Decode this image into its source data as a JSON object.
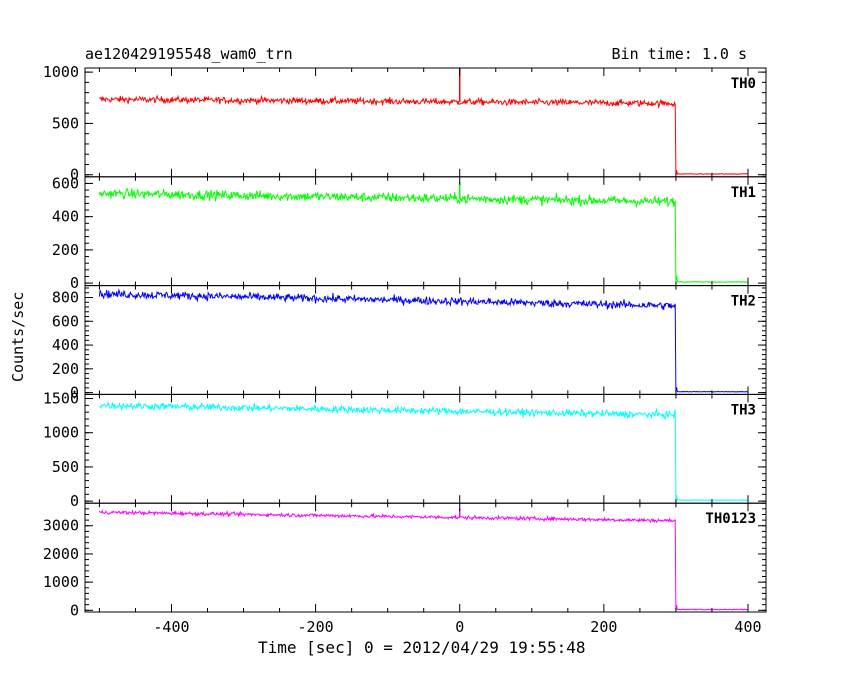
{
  "header": {
    "title": "ae120429195548_wam0_trn",
    "bin_time": "Bin time: 1.0 s"
  },
  "axes": {
    "xlabel": "Time [sec] 0 = 2012/04/29 19:55:48",
    "ylabel": "Counts/sec"
  },
  "chart_data": {
    "type": "line",
    "title": "ae120429195548_wam0_trn",
    "xlabel": "Time [sec] 0 = 2012/04/29 19:55:48",
    "ylabel": "Counts/sec",
    "xlim": [
      -520,
      425
    ],
    "xticks": [
      -400,
      -200,
      0,
      200,
      400
    ],
    "grid": false,
    "step_time": 300,
    "x_start": -500,
    "x_end": 400,
    "panels": [
      {
        "name": "TH0",
        "color": "#ff0000",
        "ylim": [
          -20,
          1040
        ],
        "yticks": [
          0,
          500,
          1000
        ],
        "level_start": 735,
        "level_end": 695,
        "noise": 30,
        "after_level": 5,
        "spike_x": 0,
        "spike_y": 1040
      },
      {
        "name": "TH1",
        "color": "#00ff00",
        "ylim": [
          -15,
          640
        ],
        "yticks": [
          0,
          200,
          400,
          600
        ],
        "level_start": 540,
        "level_end": 490,
        "noise": 28,
        "after_level": 5,
        "spike_x": 0,
        "spike_y": 610
      },
      {
        "name": "TH2",
        "color": "#0000ff",
        "ylim": [
          -15,
          900
        ],
        "yticks": [
          0,
          200,
          400,
          600,
          800
        ],
        "level_start": 830,
        "level_end": 730,
        "noise": 32,
        "after_level": 5,
        "spike_x": null,
        "spike_y": null
      },
      {
        "name": "TH3",
        "color": "#00ffff",
        "ylim": [
          -30,
          1560
        ],
        "yticks": [
          0,
          500,
          1000,
          1500
        ],
        "level_start": 1400,
        "level_end": 1260,
        "noise": 50,
        "after_level": 10,
        "spike_x": null,
        "spike_y": null
      },
      {
        "name": "TH0123",
        "color": "#ff00ff",
        "ylim": [
          -60,
          3800
        ],
        "yticks": [
          0,
          1000,
          2000,
          3000
        ],
        "level_start": 3480,
        "level_end": 3180,
        "noise": 60,
        "after_level": 20,
        "spike_x": 0,
        "spike_y": 3620
      }
    ]
  }
}
